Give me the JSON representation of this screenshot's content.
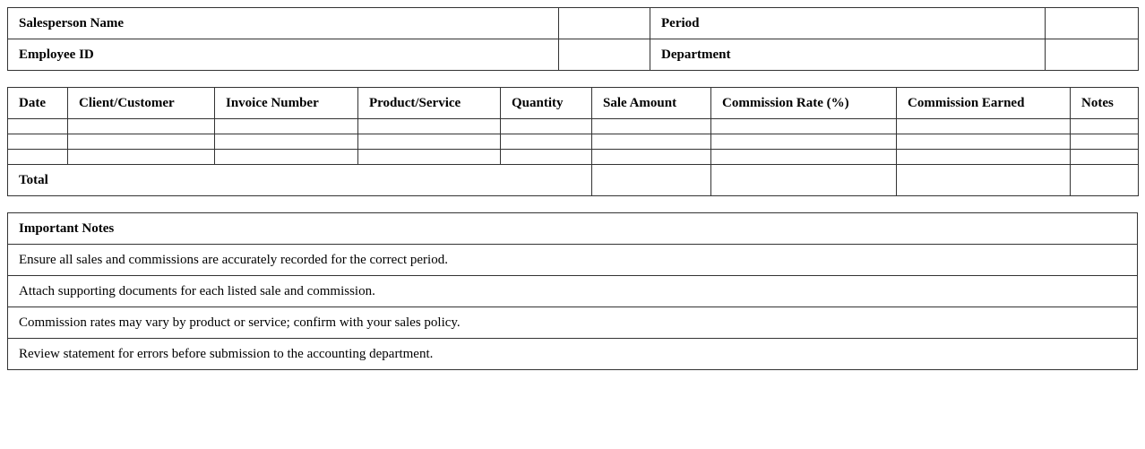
{
  "info": {
    "salesperson_label": "Salesperson Name",
    "salesperson_value": "",
    "period_label": "Period",
    "period_value": "",
    "employee_id_label": "Employee ID",
    "employee_id_value": "",
    "department_label": "Department",
    "department_value": ""
  },
  "sales": {
    "headers": [
      "Date",
      "Client/Customer",
      "Invoice Number",
      "Product/Service",
      "Quantity",
      "Sale Amount",
      "Commission Rate (%)",
      "Commission Earned",
      "Notes"
    ],
    "rows": [
      [
        "",
        "",
        "",
        "",
        "",
        "",
        "",
        "",
        ""
      ],
      [
        "",
        "",
        "",
        "",
        "",
        "",
        "",
        "",
        ""
      ],
      [
        "",
        "",
        "",
        "",
        "",
        "",
        "",
        "",
        ""
      ]
    ],
    "total_label": "Total",
    "total_sale_amount": "",
    "total_commission_rate": "",
    "total_commission_earned": "",
    "total_notes": ""
  },
  "notes": {
    "title": "Important Notes",
    "items": [
      "Ensure all sales and commissions are accurately recorded for the correct period.",
      "Attach supporting documents for each listed sale and commission.",
      "Commission rates may vary by product or service; confirm with your sales policy.",
      "Review statement for errors before submission to the accounting department."
    ]
  }
}
